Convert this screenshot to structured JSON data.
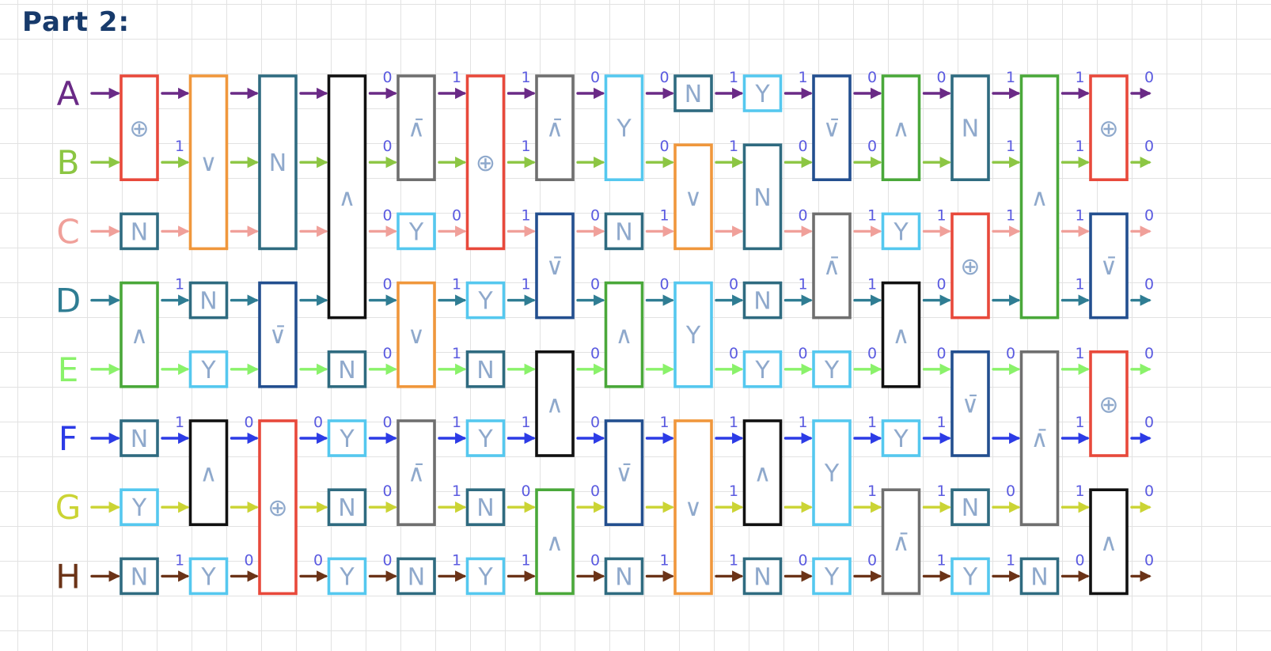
{
  "title": "Part 2:",
  "colors": {
    "grid": "#e2e2e2",
    "gate_red": "#e8493b",
    "gate_orange": "#f0973c",
    "gate_teal": "#2f6b80",
    "gate_black": "#111111",
    "gate_gray": "#6f6f6f",
    "gate_cyan": "#55c8ef",
    "gate_green": "#4aa83a",
    "gate_navy": "#234f8f",
    "label_blue": "#3b86e8"
  },
  "lines": [
    {
      "name": "A",
      "color": "#6a2a86"
    },
    {
      "name": "B",
      "color": "#8cc643"
    },
    {
      "name": "C",
      "color": "#f0a09a"
    },
    {
      "name": "D",
      "color": "#2f7d93"
    },
    {
      "name": "E",
      "color": "#8af26a"
    },
    {
      "name": "F",
      "color": "#2c3be6"
    },
    {
      "name": "G",
      "color": "#cbd434"
    },
    {
      "name": "H",
      "color": "#6b3317"
    }
  ],
  "gates": [
    {
      "col": 0,
      "top": "A",
      "bottom": "B",
      "symbol": "⊕",
      "color": "#e8493b"
    },
    {
      "col": 0,
      "top": "C",
      "bottom": "C",
      "symbol": "N",
      "color": "#2f6b80"
    },
    {
      "col": 0,
      "top": "D",
      "bottom": "E",
      "symbol": "∧",
      "color": "#4aa83a"
    },
    {
      "col": 0,
      "top": "F",
      "bottom": "F",
      "symbol": "N",
      "color": "#2f6b80"
    },
    {
      "col": 0,
      "top": "G",
      "bottom": "G",
      "symbol": "Y",
      "color": "#55c8ef"
    },
    {
      "col": 0,
      "top": "H",
      "bottom": "H",
      "symbol": "N",
      "color": "#2f6b80"
    },
    {
      "col": 1,
      "top": "A",
      "bottom": "C",
      "symbol": "∨",
      "color": "#f0973c"
    },
    {
      "col": 1,
      "top": "D",
      "bottom": "D",
      "symbol": "N",
      "color": "#2f6b80"
    },
    {
      "col": 1,
      "top": "E",
      "bottom": "E",
      "symbol": "Y",
      "color": "#55c8ef"
    },
    {
      "col": 1,
      "top": "F",
      "bottom": "G",
      "symbol": "∧",
      "color": "#111111"
    },
    {
      "col": 1,
      "top": "H",
      "bottom": "H",
      "symbol": "Y",
      "color": "#55c8ef"
    },
    {
      "col": 2,
      "top": "A",
      "bottom": "C",
      "symbol": "N",
      "color": "#2f6b80"
    },
    {
      "col": 2,
      "top": "D",
      "bottom": "E",
      "symbol": "∨̄",
      "color": "#234f8f"
    },
    {
      "col": 2,
      "top": "F",
      "bottom": "H",
      "symbol": "⊕",
      "color": "#e8493b"
    },
    {
      "col": 3,
      "top": "A",
      "bottom": "D",
      "symbol": "∧",
      "color": "#111111"
    },
    {
      "col": 3,
      "top": "E",
      "bottom": "E",
      "symbol": "N",
      "color": "#2f6b80"
    },
    {
      "col": 3,
      "top": "F",
      "bottom": "F",
      "symbol": "Y",
      "color": "#55c8ef"
    },
    {
      "col": 3,
      "top": "G",
      "bottom": "G",
      "symbol": "N",
      "color": "#2f6b80"
    },
    {
      "col": 3,
      "top": "H",
      "bottom": "H",
      "symbol": "Y",
      "color": "#55c8ef"
    },
    {
      "col": 4,
      "top": "A",
      "bottom": "B",
      "symbol": "∧̄",
      "color": "#6f6f6f"
    },
    {
      "col": 4,
      "top": "C",
      "bottom": "C",
      "symbol": "Y",
      "color": "#55c8ef"
    },
    {
      "col": 4,
      "top": "D",
      "bottom": "E",
      "symbol": "∨",
      "color": "#f0973c"
    },
    {
      "col": 4,
      "top": "F",
      "bottom": "G",
      "symbol": "∧̄",
      "color": "#6f6f6f"
    },
    {
      "col": 4,
      "top": "H",
      "bottom": "H",
      "symbol": "N",
      "color": "#2f6b80"
    },
    {
      "col": 5,
      "top": "A",
      "bottom": "C",
      "symbol": "⊕",
      "color": "#e8493b"
    },
    {
      "col": 5,
      "top": "D",
      "bottom": "D",
      "symbol": "Y",
      "color": "#55c8ef"
    },
    {
      "col": 5,
      "top": "E",
      "bottom": "E",
      "symbol": "N",
      "color": "#2f6b80"
    },
    {
      "col": 5,
      "top": "F",
      "bottom": "F",
      "symbol": "Y",
      "color": "#55c8ef"
    },
    {
      "col": 5,
      "top": "G",
      "bottom": "G",
      "symbol": "N",
      "color": "#2f6b80"
    },
    {
      "col": 5,
      "top": "H",
      "bottom": "H",
      "symbol": "Y",
      "color": "#55c8ef"
    },
    {
      "col": 6,
      "top": "A",
      "bottom": "B",
      "symbol": "∧̄",
      "color": "#6f6f6f"
    },
    {
      "col": 6,
      "top": "C",
      "bottom": "D",
      "symbol": "∨̄",
      "color": "#234f8f"
    },
    {
      "col": 6,
      "top": "E",
      "bottom": "F",
      "symbol": "∧",
      "color": "#111111"
    },
    {
      "col": 6,
      "top": "G",
      "bottom": "H",
      "symbol": "∧",
      "color": "#4aa83a"
    },
    {
      "col": 7,
      "top": "A",
      "bottom": "B",
      "symbol": "Y",
      "color": "#55c8ef"
    },
    {
      "col": 7,
      "top": "C",
      "bottom": "C",
      "symbol": "N",
      "color": "#2f6b80"
    },
    {
      "col": 7,
      "top": "D",
      "bottom": "E",
      "symbol": "∧",
      "color": "#4aa83a"
    },
    {
      "col": 7,
      "top": "F",
      "bottom": "G",
      "symbol": "∨̄",
      "color": "#234f8f"
    },
    {
      "col": 7,
      "top": "H",
      "bottom": "H",
      "symbol": "N",
      "color": "#2f6b80"
    },
    {
      "col": 8,
      "top": "A",
      "bottom": "A",
      "symbol": "N",
      "color": "#2f6b80"
    },
    {
      "col": 8,
      "top": "B",
      "bottom": "C",
      "symbol": "∨",
      "color": "#f0973c"
    },
    {
      "col": 8,
      "top": "D",
      "bottom": "E",
      "symbol": "Y",
      "color": "#55c8ef"
    },
    {
      "col": 8,
      "top": "F",
      "bottom": "H",
      "symbol": "∨",
      "color": "#f0973c"
    },
    {
      "col": 9,
      "top": "A",
      "bottom": "A",
      "symbol": "Y",
      "color": "#55c8ef"
    },
    {
      "col": 9,
      "top": "B",
      "bottom": "C",
      "symbol": "N",
      "color": "#2f6b80"
    },
    {
      "col": 9,
      "top": "D",
      "bottom": "D",
      "symbol": "N",
      "color": "#2f6b80"
    },
    {
      "col": 9,
      "top": "E",
      "bottom": "E",
      "symbol": "Y",
      "color": "#55c8ef"
    },
    {
      "col": 9,
      "top": "F",
      "bottom": "G",
      "symbol": "∧",
      "color": "#111111"
    },
    {
      "col": 9,
      "top": "H",
      "bottom": "H",
      "symbol": "N",
      "color": "#2f6b80"
    },
    {
      "col": 10,
      "top": "A",
      "bottom": "B",
      "symbol": "∨̄",
      "color": "#234f8f"
    },
    {
      "col": 10,
      "top": "C",
      "bottom": "D",
      "symbol": "∧̄",
      "color": "#6f6f6f"
    },
    {
      "col": 10,
      "top": "E",
      "bottom": "E",
      "symbol": "Y",
      "color": "#55c8ef"
    },
    {
      "col": 10,
      "top": "F",
      "bottom": "G",
      "symbol": "Y",
      "color": "#55c8ef"
    },
    {
      "col": 10,
      "top": "H",
      "bottom": "H",
      "symbol": "Y",
      "color": "#55c8ef"
    },
    {
      "col": 11,
      "top": "A",
      "bottom": "B",
      "symbol": "∧",
      "color": "#4aa83a"
    },
    {
      "col": 11,
      "top": "C",
      "bottom": "C",
      "symbol": "Y",
      "color": "#55c8ef"
    },
    {
      "col": 11,
      "top": "D",
      "bottom": "E",
      "symbol": "∧",
      "color": "#111111"
    },
    {
      "col": 11,
      "top": "F",
      "bottom": "F",
      "symbol": "Y",
      "color": "#55c8ef"
    },
    {
      "col": 11,
      "top": "G",
      "bottom": "H",
      "symbol": "∧̄",
      "color": "#6f6f6f"
    },
    {
      "col": 12,
      "top": "A",
      "bottom": "B",
      "symbol": "N",
      "color": "#2f6b80"
    },
    {
      "col": 12,
      "top": "C",
      "bottom": "D",
      "symbol": "⊕",
      "color": "#e8493b"
    },
    {
      "col": 12,
      "top": "E",
      "bottom": "F",
      "symbol": "∨̄",
      "color": "#234f8f"
    },
    {
      "col": 12,
      "top": "G",
      "bottom": "G",
      "symbol": "N",
      "color": "#2f6b80"
    },
    {
      "col": 12,
      "top": "H",
      "bottom": "H",
      "symbol": "Y",
      "color": "#55c8ef"
    },
    {
      "col": 13,
      "top": "A",
      "bottom": "D",
      "symbol": "∧",
      "color": "#4aa83a"
    },
    {
      "col": 13,
      "top": "E",
      "bottom": "G",
      "symbol": "∧̄",
      "color": "#6f6f6f"
    },
    {
      "col": 13,
      "top": "H",
      "bottom": "H",
      "symbol": "N",
      "color": "#2f6b80"
    },
    {
      "col": 14,
      "top": "A",
      "bottom": "B",
      "symbol": "⊕",
      "color": "#e8493b"
    },
    {
      "col": 14,
      "top": "C",
      "bottom": "D",
      "symbol": "∨̄",
      "color": "#234f8f"
    },
    {
      "col": 14,
      "top": "E",
      "bottom": "F",
      "symbol": "⊕",
      "color": "#e8493b"
    },
    {
      "col": 14,
      "top": "G",
      "bottom": "H",
      "symbol": "∧",
      "color": "#111111"
    }
  ],
  "bits": [
    {
      "col": 1,
      "line": "B",
      "text": "1"
    },
    {
      "col": 1,
      "line": "D",
      "text": "1"
    },
    {
      "col": 1,
      "line": "F",
      "text": "1"
    },
    {
      "col": 1,
      "line": "H",
      "text": "1"
    },
    {
      "col": 2,
      "line": "F",
      "text": "0"
    },
    {
      "col": 2,
      "line": "H",
      "text": "0"
    },
    {
      "col": 3,
      "line": "F",
      "text": "0"
    },
    {
      "col": 3,
      "line": "H",
      "text": "0"
    },
    {
      "col": 4,
      "line": "A",
      "text": "0"
    },
    {
      "col": 4,
      "line": "B",
      "text": "0"
    },
    {
      "col": 4,
      "line": "C",
      "text": "0"
    },
    {
      "col": 4,
      "line": "D",
      "text": "0"
    },
    {
      "col": 4,
      "line": "E",
      "text": "0"
    },
    {
      "col": 4,
      "line": "F",
      "text": "0"
    },
    {
      "col": 4,
      "line": "G",
      "text": "0"
    },
    {
      "col": 4,
      "line": "H",
      "text": "0"
    },
    {
      "col": 5,
      "line": "A",
      "text": "1"
    },
    {
      "col": 5,
      "line": "C",
      "text": "0"
    },
    {
      "col": 5,
      "line": "D",
      "text": "1"
    },
    {
      "col": 5,
      "line": "E",
      "text": "1"
    },
    {
      "col": 5,
      "line": "F",
      "text": "1"
    },
    {
      "col": 5,
      "line": "G",
      "text": "1"
    },
    {
      "col": 5,
      "line": "H",
      "text": "1"
    },
    {
      "col": 6,
      "line": "A",
      "text": "1"
    },
    {
      "col": 6,
      "line": "B",
      "text": "1"
    },
    {
      "col": 6,
      "line": "C",
      "text": "1"
    },
    {
      "col": 6,
      "line": "D",
      "text": "1"
    },
    {
      "col": 6,
      "line": "F",
      "text": "1"
    },
    {
      "col": 6,
      "line": "G",
      "text": "0"
    },
    {
      "col": 6,
      "line": "H",
      "text": "1"
    },
    {
      "col": 7,
      "line": "A",
      "text": "0"
    },
    {
      "col": 7,
      "line": "C",
      "text": "0"
    },
    {
      "col": 7,
      "line": "D",
      "text": "0"
    },
    {
      "col": 7,
      "line": "E",
      "text": "0"
    },
    {
      "col": 7,
      "line": "F",
      "text": "0"
    },
    {
      "col": 7,
      "line": "G",
      "text": "0"
    },
    {
      "col": 7,
      "line": "H",
      "text": "0"
    },
    {
      "col": 8,
      "line": "A",
      "text": "0"
    },
    {
      "col": 8,
      "line": "B",
      "text": "0"
    },
    {
      "col": 8,
      "line": "C",
      "text": "1"
    },
    {
      "col": 8,
      "line": "D",
      "text": "0"
    },
    {
      "col": 8,
      "line": "F",
      "text": "1"
    },
    {
      "col": 8,
      "line": "H",
      "text": "1"
    },
    {
      "col": 9,
      "line": "A",
      "text": "1"
    },
    {
      "col": 9,
      "line": "B",
      "text": "1"
    },
    {
      "col": 9,
      "line": "D",
      "text": "0"
    },
    {
      "col": 9,
      "line": "E",
      "text": "0"
    },
    {
      "col": 9,
      "line": "F",
      "text": "1"
    },
    {
      "col": 9,
      "line": "G",
      "text": "1"
    },
    {
      "col": 9,
      "line": "H",
      "text": "1"
    },
    {
      "col": 10,
      "line": "A",
      "text": "1"
    },
    {
      "col": 10,
      "line": "B",
      "text": "0"
    },
    {
      "col": 10,
      "line": "C",
      "text": "0"
    },
    {
      "col": 10,
      "line": "D",
      "text": "1"
    },
    {
      "col": 10,
      "line": "E",
      "text": "0"
    },
    {
      "col": 10,
      "line": "F",
      "text": "1"
    },
    {
      "col": 10,
      "line": "H",
      "text": "0"
    },
    {
      "col": 11,
      "line": "A",
      "text": "0"
    },
    {
      "col": 11,
      "line": "B",
      "text": "0"
    },
    {
      "col": 11,
      "line": "C",
      "text": "1"
    },
    {
      "col": 11,
      "line": "D",
      "text": "1"
    },
    {
      "col": 11,
      "line": "E",
      "text": "0"
    },
    {
      "col": 11,
      "line": "F",
      "text": "1"
    },
    {
      "col": 11,
      "line": "G",
      "text": "1"
    },
    {
      "col": 11,
      "line": "H",
      "text": "0"
    },
    {
      "col": 12,
      "line": "A",
      "text": "0"
    },
    {
      "col": 12,
      "line": "C",
      "text": "1"
    },
    {
      "col": 12,
      "line": "D",
      "text": "0"
    },
    {
      "col": 12,
      "line": "E",
      "text": "0"
    },
    {
      "col": 12,
      "line": "F",
      "text": "1"
    },
    {
      "col": 12,
      "line": "G",
      "text": "1"
    },
    {
      "col": 12,
      "line": "H",
      "text": "1"
    },
    {
      "col": 13,
      "line": "A",
      "text": "1"
    },
    {
      "col": 13,
      "line": "B",
      "text": "1"
    },
    {
      "col": 13,
      "line": "C",
      "text": "1"
    },
    {
      "col": 13,
      "line": "E",
      "text": "0"
    },
    {
      "col": 13,
      "line": "G",
      "text": "0"
    },
    {
      "col": 13,
      "line": "H",
      "text": "1"
    },
    {
      "col": 14,
      "line": "A",
      "text": "1"
    },
    {
      "col": 14,
      "line": "B",
      "text": "1"
    },
    {
      "col": 14,
      "line": "C",
      "text": "1"
    },
    {
      "col": 14,
      "line": "D",
      "text": "1"
    },
    {
      "col": 14,
      "line": "E",
      "text": "1"
    },
    {
      "col": 14,
      "line": "F",
      "text": "1"
    },
    {
      "col": 14,
      "line": "G",
      "text": "1"
    },
    {
      "col": 14,
      "line": "H",
      "text": "0"
    },
    {
      "col": 15,
      "line": "A",
      "text": "0"
    },
    {
      "col": 15,
      "line": "B",
      "text": "0"
    },
    {
      "col": 15,
      "line": "C",
      "text": "0"
    },
    {
      "col": 15,
      "line": "D",
      "text": "0"
    },
    {
      "col": 15,
      "line": "E",
      "text": "0"
    },
    {
      "col": 15,
      "line": "F",
      "text": "0"
    },
    {
      "col": 15,
      "line": "G",
      "text": "0"
    },
    {
      "col": 15,
      "line": "H",
      "text": "0"
    }
  ]
}
